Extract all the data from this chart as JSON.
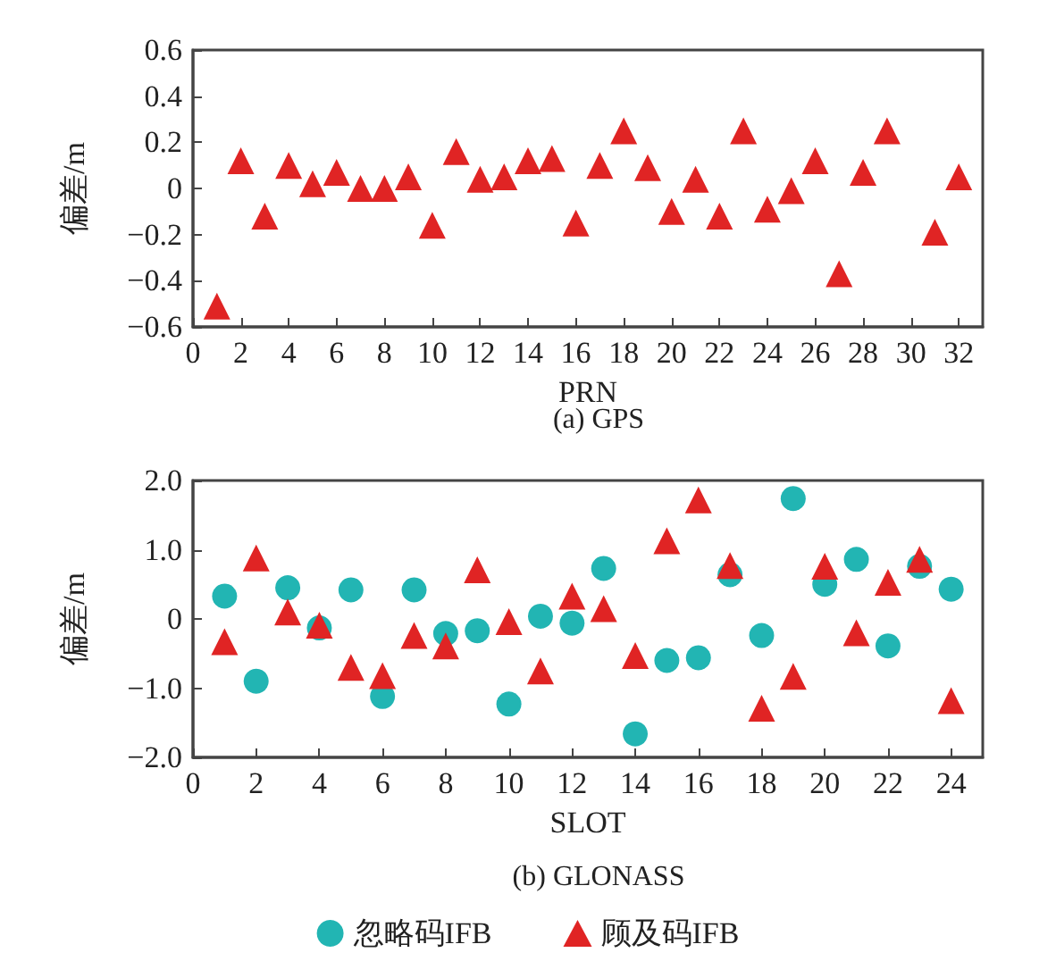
{
  "chart_data": [
    {
      "type": "scatter",
      "title": "(a) GPS",
      "xlabel": "PRN",
      "ylabel": "偏差/m",
      "marker": "triangle",
      "grid": false,
      "legend": false,
      "xlim": [
        0,
        33
      ],
      "xticks": [
        0,
        2,
        4,
        6,
        8,
        10,
        12,
        14,
        16,
        18,
        20,
        22,
        24,
        26,
        28,
        30,
        32
      ],
      "ylim": [
        -0.6,
        0.6
      ],
      "yticks": [
        -0.6,
        -0.4,
        -0.2,
        0,
        0.2,
        0.4,
        0.6
      ],
      "series": [
        {
          "color": "#e02424",
          "x": [
            1,
            2,
            3,
            4,
            5,
            6,
            7,
            8,
            9,
            10,
            11,
            12,
            13,
            14,
            15,
            16,
            17,
            18,
            19,
            20,
            21,
            22,
            23,
            24,
            25,
            26,
            27,
            28,
            29,
            31,
            32
          ],
          "values": [
            -0.51,
            0.12,
            -0.12,
            0.1,
            0.02,
            0.07,
            0.0,
            0.0,
            0.05,
            -0.16,
            0.16,
            0.04,
            0.05,
            0.12,
            0.13,
            -0.15,
            0.1,
            0.25,
            0.09,
            -0.1,
            0.04,
            -0.12,
            0.25,
            -0.09,
            -0.01,
            0.12,
            -0.37,
            0.07,
            0.25,
            -0.19,
            0.05
          ]
        }
      ]
    },
    {
      "type": "scatter",
      "title": "(b) GLONASS",
      "xlabel": "SLOT",
      "ylabel": "偏差/m",
      "grid": false,
      "legend": "bottom",
      "xlim": [
        0,
        25
      ],
      "xticks": [
        0,
        2,
        4,
        6,
        8,
        10,
        12,
        14,
        16,
        18,
        20,
        22,
        24
      ],
      "ylim": [
        -2,
        2
      ],
      "yticks": [
        {
          "value": -2,
          "label": "−2.0"
        },
        {
          "value": -1,
          "label": "−1.0"
        },
        0,
        {
          "value": 1,
          "label": "1.0"
        },
        {
          "value": 2,
          "label": "2.0"
        }
      ],
      "series": [
        {
          "name": "忽略码IFB",
          "marker": "circle",
          "color": "#22b5b3",
          "x": [
            1,
            2,
            3,
            4,
            5,
            6,
            7,
            8,
            9,
            10,
            11,
            12,
            13,
            14,
            15,
            16,
            17,
            18,
            19,
            20,
            21,
            22,
            23,
            24
          ],
          "values": [
            0.33,
            -0.9,
            0.45,
            -0.13,
            0.42,
            -1.12,
            0.42,
            -0.21,
            -0.17,
            -1.23,
            0.04,
            -0.06,
            0.73,
            -1.66,
            -0.6,
            -0.56,
            0.64,
            -0.24,
            1.74,
            0.5,
            0.86,
            -0.39,
            0.76,
            0.43
          ]
        },
        {
          "name": "顾及码IFB",
          "marker": "triangle",
          "color": "#e02424",
          "x": [
            1,
            2,
            3,
            4,
            5,
            6,
            7,
            8,
            9,
            10,
            11,
            12,
            13,
            14,
            15,
            16,
            17,
            18,
            19,
            20,
            21,
            22,
            23,
            24
          ],
          "values": [
            -0.33,
            0.88,
            0.1,
            -0.09,
            -0.7,
            -0.82,
            -0.24,
            -0.39,
            0.71,
            -0.04,
            -0.75,
            0.33,
            0.15,
            -0.53,
            1.13,
            1.72,
            0.77,
            -1.29,
            -0.83,
            0.76,
            -0.2,
            0.53,
            0.86,
            -1.18
          ]
        }
      ]
    }
  ]
}
